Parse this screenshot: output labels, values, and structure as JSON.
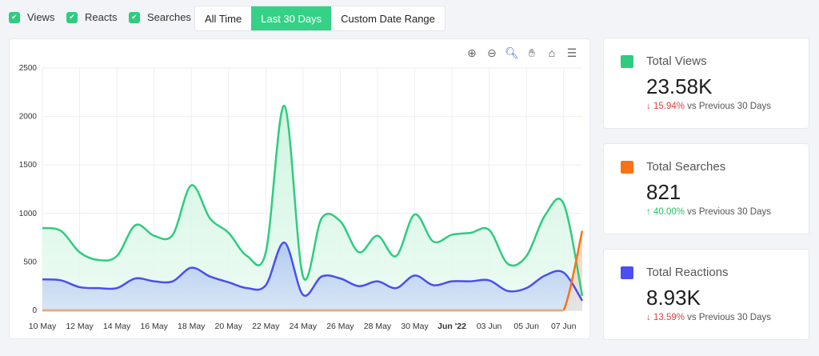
{
  "filters": [
    {
      "label": "Views",
      "checked": true
    },
    {
      "label": "Reacts",
      "checked": true
    },
    {
      "label": "Searches",
      "checked": true
    }
  ],
  "ranges": [
    {
      "label": "All Time",
      "active": false
    },
    {
      "label": "Last 30 Days",
      "active": true
    },
    {
      "label": "Custom Date Range",
      "active": false
    }
  ],
  "toolbar": [
    "zoom-in-icon",
    "zoom-out-icon",
    "selection-zoom-icon",
    "pan-hand-icon",
    "home-reset-icon",
    "menu-icon"
  ],
  "cards": [
    {
      "title": "Total Views",
      "value": "23.58K",
      "change": "15.94%",
      "direction": "down",
      "suffix": "vs Previous 30 Days",
      "color": "#2ecc7f"
    },
    {
      "title": "Total Searches",
      "value": "821",
      "change": "40.00%",
      "direction": "up",
      "suffix": "vs Previous 30 Days",
      "color": "#f97316"
    },
    {
      "title": "Total Reactions",
      "value": "8.93K",
      "change": "13.59%",
      "direction": "down",
      "suffix": "vs Previous 30 Days",
      "color": "#4b4ef0"
    }
  ],
  "colors": {
    "up": "#22c55e",
    "down": "#e53e3e"
  },
  "chart_data": {
    "type": "area",
    "x": [
      "10 May",
      "11 May",
      "12 May",
      "13 May",
      "14 May",
      "15 May",
      "16 May",
      "17 May",
      "18 May",
      "19 May",
      "20 May",
      "21 May",
      "22 May",
      "23 May",
      "24 May",
      "25 May",
      "26 May",
      "27 May",
      "28 May",
      "29 May",
      "30 May",
      "31 May",
      "01 Jun",
      "02 Jun",
      "03 Jun",
      "04 Jun",
      "05 Jun",
      "06 Jun",
      "07 Jun",
      "08 Jun"
    ],
    "xticks": [
      "10 May",
      "12 May",
      "14 May",
      "16 May",
      "18 May",
      "20 May",
      "22 May",
      "24 May",
      "26 May",
      "28 May",
      "30 May",
      "Jun '22",
      "03 Jun",
      "05 Jun",
      "07 Jun"
    ],
    "yticks": [
      "0",
      "500",
      "1000",
      "1500",
      "2000",
      "2500"
    ],
    "ylim": [
      0,
      2500
    ],
    "grid": true,
    "series": [
      {
        "key": "views",
        "color": "#2ecc7f",
        "values": [
          850,
          820,
          600,
          520,
          560,
          880,
          770,
          780,
          1290,
          950,
          800,
          560,
          600,
          2110,
          350,
          950,
          920,
          600,
          770,
          560,
          990,
          710,
          780,
          800,
          830,
          480,
          560,
          980,
          1100,
          150
        ]
      },
      {
        "key": "reacts",
        "color": "#4b4ef0",
        "values": [
          320,
          310,
          240,
          230,
          230,
          330,
          300,
          300,
          440,
          350,
          290,
          230,
          260,
          700,
          160,
          350,
          330,
          250,
          300,
          230,
          360,
          260,
          300,
          300,
          310,
          200,
          230,
          360,
          390,
          100
        ]
      },
      {
        "key": "searches",
        "color": "#f97316",
        "values": [
          0,
          0,
          0,
          0,
          0,
          0,
          0,
          0,
          0,
          0,
          0,
          0,
          0,
          0,
          0,
          0,
          0,
          0,
          0,
          0,
          0,
          0,
          0,
          0,
          0,
          0,
          0,
          0,
          0,
          821
        ]
      }
    ]
  }
}
